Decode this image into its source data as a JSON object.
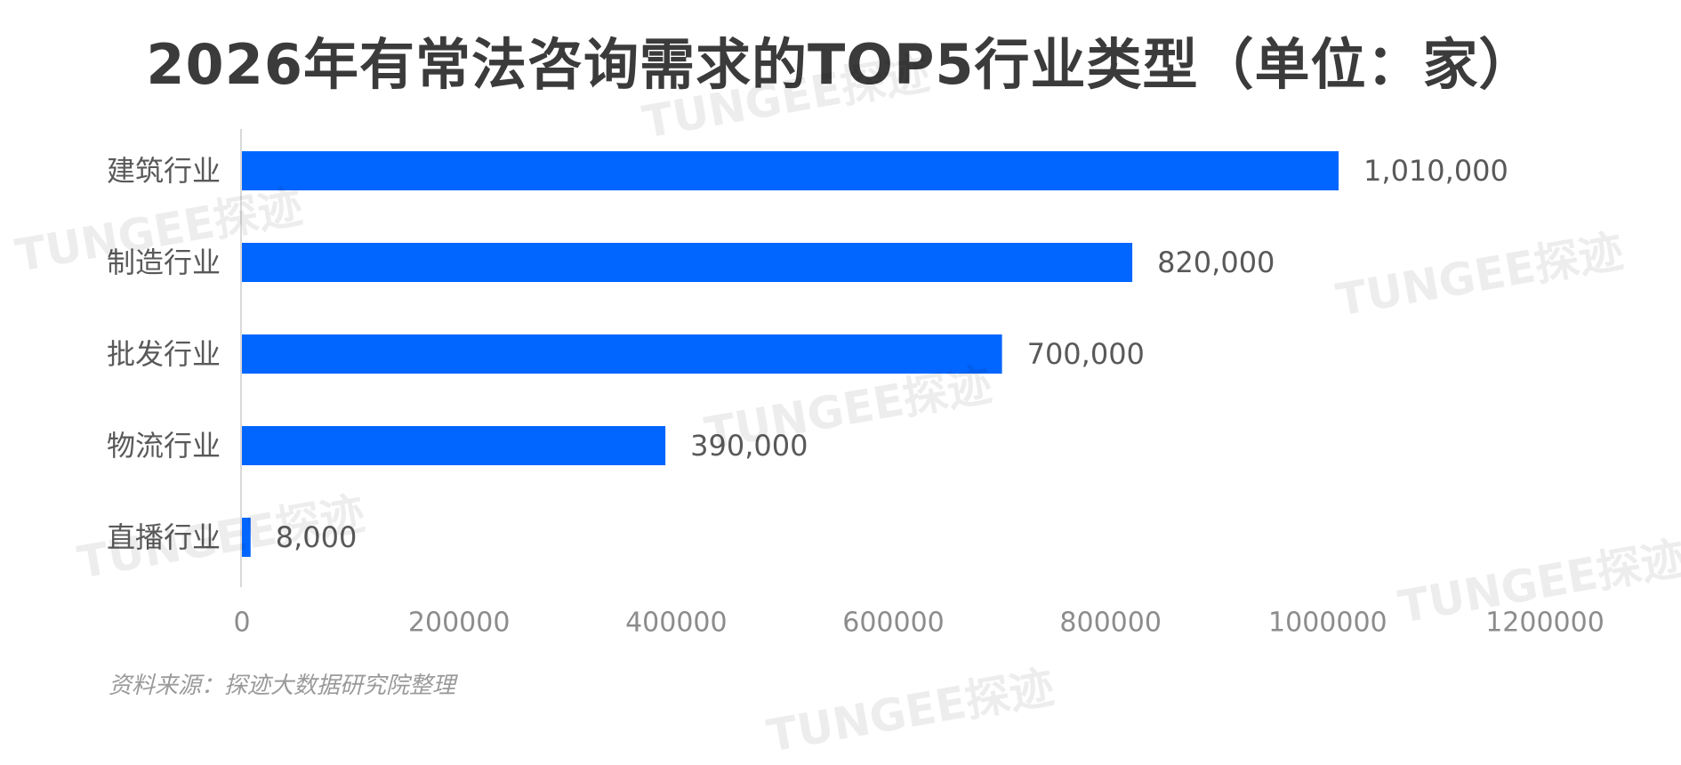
{
  "title": "2026年有常法咨询需求的TOP5行业类型（单位：家）",
  "source": "资料来源：探迹大数据研究院整理",
  "watermark": "TUNGEE探迹",
  "colors": {
    "bar": "#0066ff",
    "axis": "#d9d9d9",
    "text": "#595959"
  },
  "chart_data": {
    "type": "bar",
    "orientation": "horizontal",
    "categories": [
      "建筑行业",
      "制造行业",
      "批发行业",
      "物流行业",
      "直播行业"
    ],
    "values": [
      1010000,
      820000,
      700000,
      390000,
      8000
    ],
    "value_labels": [
      "1,010,000",
      "820,000",
      "700,000",
      "390,000",
      "8,000"
    ],
    "xlim": [
      0,
      1200000
    ],
    "xticks": [
      "0",
      "200000",
      "400000",
      "600000",
      "800000",
      "1000000",
      "1200000"
    ],
    "title": "2026年有常法咨询需求的TOP5行业类型（单位：家）",
    "xlabel": "",
    "ylabel": "",
    "grid": false
  }
}
